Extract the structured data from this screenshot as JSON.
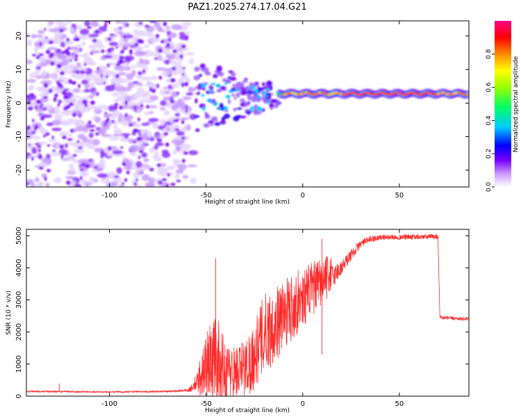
{
  "title": "PAZ1.2025.274.17.04.G21",
  "chart_data": [
    {
      "type": "heatmap",
      "name": "spectrogram",
      "xlabel": "Height of straight line (km)",
      "ylabel": "Frequency (Hz)",
      "xlim": [
        -143,
        86
      ],
      "ylim": [
        -25,
        24.5
      ],
      "x_ticks": [
        -100,
        -50,
        0,
        50
      ],
      "x_tick_labels": [
        "-100",
        "-50",
        "0",
        "50"
      ],
      "y_ticks": [
        -20,
        -10,
        0,
        10,
        20
      ],
      "y_tick_labels": [
        "-20",
        "-10",
        "0",
        "10",
        "20"
      ],
      "colorbar": {
        "label": "Normalized spectral amplitude",
        "range": [
          0,
          1
        ],
        "ticks": [
          0.0,
          0.2,
          0.4,
          0.6,
          0.8
        ],
        "tick_labels": [
          "0.0",
          "0.2",
          "0.4",
          "0.6",
          "0.8"
        ],
        "colors": [
          "#ffffff",
          "#cc99ff",
          "#7700ff",
          "#0000ff",
          "#00ccff",
          "#00ff66",
          "#99ff00",
          "#ffff00",
          "#ff8800",
          "#ff0000",
          "#ff0088"
        ]
      },
      "features": {
        "noise_region_x": [
          -143,
          -60
        ],
        "transition_region_x": [
          -57,
          -12
        ],
        "signal_line_x": [
          -12,
          86
        ],
        "signal_line_frequency": 2.8
      }
    },
    {
      "type": "line",
      "name": "snr",
      "xlabel": "Height of straight line (km)",
      "ylabel": "SNR (10 * v/v)",
      "xlim": [
        -143,
        86
      ],
      "ylim": [
        0,
        5200
      ],
      "x_ticks": [
        -100,
        -50,
        0,
        50
      ],
      "x_tick_labels": [
        "-100",
        "-50",
        "0",
        "50"
      ],
      "y_ticks": [
        0,
        1000,
        2000,
        3000,
        4000,
        5000
      ],
      "y_tick_labels": [
        "0",
        "1000",
        "2000",
        "3000",
        "4000",
        "5000"
      ],
      "color": "#ff2a2a",
      "envelope": {
        "x": [
          -143,
          -100,
          -70,
          -60,
          -55,
          -50,
          -45,
          -40,
          -35,
          -30,
          -25,
          -20,
          -15,
          -10,
          -5,
          0,
          5,
          10,
          15,
          20,
          25,
          30,
          35,
          40,
          50,
          60,
          70,
          71,
          86
        ],
        "baseline": [
          150,
          130,
          150,
          180,
          300,
          600,
          800,
          500,
          500,
          600,
          900,
          1600,
          1800,
          2200,
          2500,
          2800,
          3100,
          3300,
          3700,
          4000,
          4400,
          4750,
          4900,
          4950,
          4960,
          4960,
          4980,
          2450,
          2400
        ],
        "spread": [
          60,
          50,
          60,
          80,
          400,
          1600,
          2000,
          1300,
          1200,
          1300,
          1500,
          1800,
          1700,
          1500,
          1500,
          1300,
          1200,
          1100,
          800,
          500,
          350,
          250,
          200,
          160,
          160,
          160,
          160,
          120,
          100
        ]
      },
      "annotations": [
        {
          "x": -126,
          "y": 400
        },
        {
          "x": -45,
          "y": 4300
        },
        {
          "x": 10,
          "y": 4900
        },
        {
          "x": 10,
          "y": 1300
        }
      ]
    }
  ]
}
